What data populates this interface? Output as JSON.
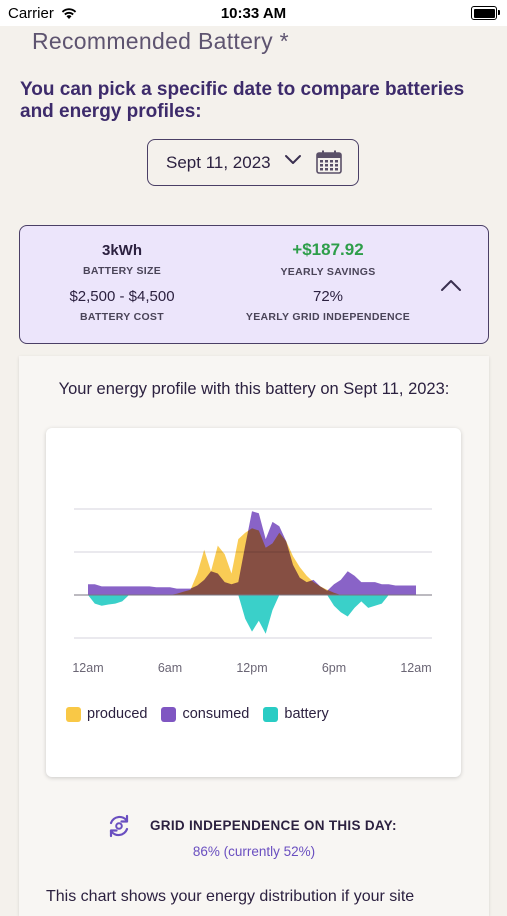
{
  "status_bar": {
    "carrier": "Carrier",
    "time": "10:33 AM"
  },
  "section": {
    "title": "Recommended Battery *"
  },
  "intro": {
    "text": "You can pick a specific date to compare batteries and energy profiles:"
  },
  "date_picker": {
    "value": "Sept 11, 2023",
    "icons": [
      "chevron-down-icon",
      "calendar-icon"
    ]
  },
  "summary": {
    "battery_size": {
      "value": "3kWh",
      "label": "BATTERY SIZE"
    },
    "yearly_savings": {
      "value": "+$187.92",
      "label": "YEARLY SAVINGS"
    },
    "battery_cost": {
      "value": "$2,500 - $4,500",
      "label": "BATTERY COST"
    },
    "grid_independence": {
      "value": "72%",
      "label": "YEARLY GRID INDEPENDENCE"
    },
    "toggle_icon": "chevron-up-icon"
  },
  "profile": {
    "text": "Your energy profile with this battery on Sept 11, 2023:"
  },
  "chart_data": {
    "type": "area",
    "x_ticks": [
      "12am",
      "6am",
      "12pm",
      "6pm",
      "12am"
    ],
    "x_hours": [
      0,
      0.5,
      1,
      1.5,
      2,
      2.5,
      3,
      3.5,
      4,
      4.5,
      5,
      5.5,
      6,
      6.5,
      7,
      7.5,
      8,
      8.5,
      9,
      9.5,
      10,
      10.5,
      11,
      11.5,
      12,
      12.5,
      13,
      13.5,
      14,
      14.5,
      15,
      15.5,
      16,
      16.5,
      17,
      17.5,
      18,
      18.5,
      19,
      19.5,
      20,
      20.5,
      21,
      21.5,
      22,
      22.5,
      23,
      23.5,
      24
    ],
    "y_range": [
      -1,
      2
    ],
    "gridlines": true,
    "legend_position": "bottom-left",
    "series": [
      {
        "name": "produced",
        "color": "#f9c846",
        "values": [
          0,
          0,
          0,
          0,
          0,
          0,
          0,
          0,
          0,
          0,
          0,
          0,
          0,
          0.03,
          0.08,
          0.12,
          0.5,
          1.05,
          0.55,
          1.15,
          0.95,
          0.5,
          1.3,
          1.45,
          1.55,
          1.5,
          1.1,
          1.2,
          1.45,
          1.25,
          0.9,
          0.65,
          0.45,
          0.3,
          0.2,
          0.12,
          0.05,
          0,
          0,
          0,
          0,
          0,
          0,
          0,
          0,
          0,
          0,
          0,
          0
        ]
      },
      {
        "name": "consumed",
        "color": "#7f56c2",
        "values": [
          0.25,
          0.25,
          0.2,
          0.2,
          0.2,
          0.2,
          0.2,
          0.2,
          0.2,
          0.2,
          0.18,
          0.18,
          0.18,
          0.15,
          0.15,
          0.15,
          0.22,
          0.35,
          0.55,
          0.5,
          0.3,
          0.25,
          0.3,
          1.15,
          1.95,
          1.9,
          1.3,
          1.7,
          1.6,
          1.25,
          0.7,
          0.4,
          0.3,
          0.35,
          0.2,
          0.1,
          0.25,
          0.35,
          0.55,
          0.45,
          0.3,
          0.3,
          0.3,
          0.25,
          0.25,
          0.22,
          0.22,
          0.22,
          0.22
        ]
      },
      {
        "name": "battery",
        "color": "#29ccc4",
        "values": [
          0,
          -0.2,
          -0.25,
          -0.22,
          -0.2,
          -0.15,
          0,
          0,
          0,
          0,
          0,
          0,
          0,
          0,
          0,
          0,
          0,
          0,
          0,
          0,
          0,
          0,
          0,
          -0.55,
          -0.85,
          -0.6,
          -0.9,
          -0.35,
          0,
          0,
          0,
          0,
          0,
          0,
          0,
          0,
          -0.25,
          -0.4,
          -0.5,
          -0.3,
          -0.15,
          -0.3,
          -0.25,
          -0.2,
          0,
          0,
          0,
          0,
          0
        ]
      }
    ]
  },
  "legend": {
    "produced": "produced",
    "consumed": "consumed",
    "battery": "battery"
  },
  "grid_independence_day": {
    "label": "GRID INDEPENDENCE ON THIS DAY:",
    "value": "86% (currently 52%)",
    "icon": "sync-icon"
  },
  "explanation": {
    "text": "This chart shows your energy distribution if your site"
  }
}
